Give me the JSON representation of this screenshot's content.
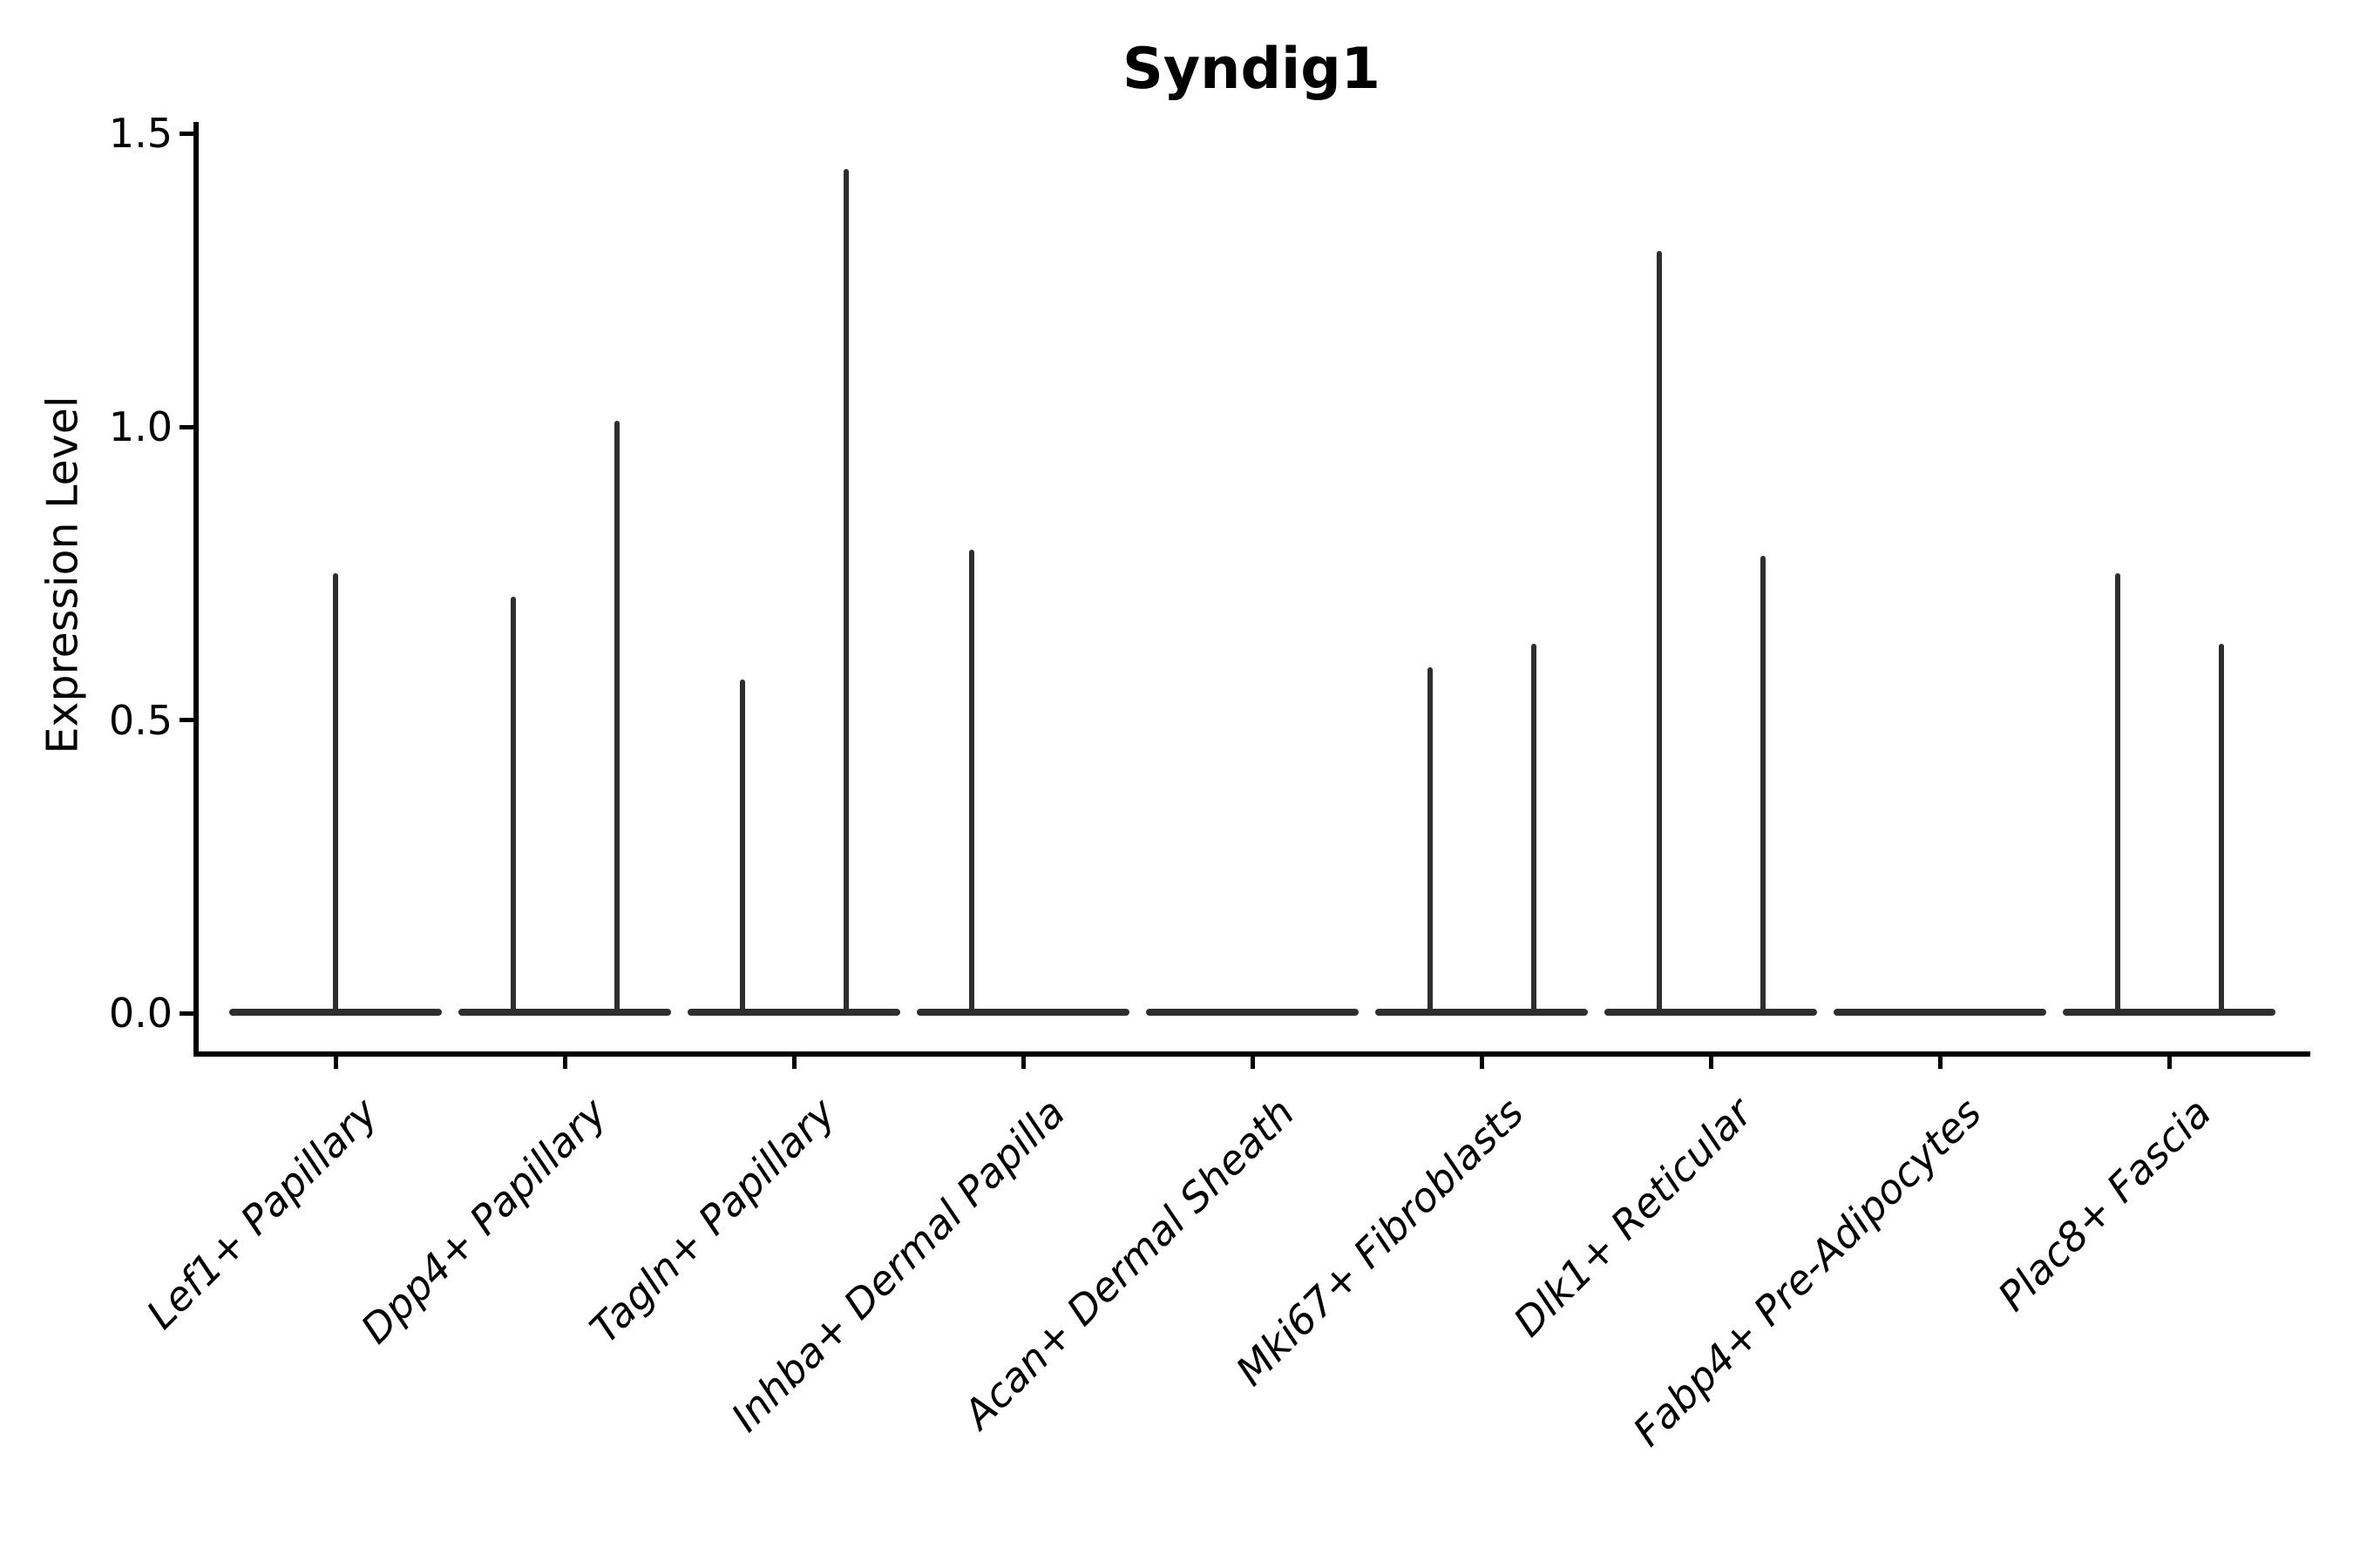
{
  "chart_data": {
    "type": "violin",
    "title": "Syndig1",
    "ylabel": "Expression Level",
    "xlabel": "",
    "ylim": [
      0,
      1.5
    ],
    "ytick_values": [
      0.0,
      0.5,
      1.0,
      1.5
    ],
    "ytick_labels": [
      "0.0",
      "0.5",
      "1.0",
      "1.5"
    ],
    "grid": false,
    "legend": "none",
    "categories": [
      "Lef1+ Papillary",
      "Dpp4+ Papillary",
      "Tagln+ Papillary",
      "Inhba+ Dermal Papilla",
      "Acan+ Dermal Sheath",
      "Mki67+ Fibroblasts",
      "Dlk1+ Reticular",
      "Fabp4+ Pre-Adipocytes",
      "Plac8+ Fascia"
    ],
    "violins": [
      {
        "category": "Lef1+ Papillary",
        "body": "flat-at-zero",
        "spikes": [
          {
            "position": "center",
            "value": 0.75
          }
        ]
      },
      {
        "category": "Dpp4+ Papillary",
        "body": "flat-at-zero",
        "spikes": [
          {
            "position": "left",
            "value": 0.71
          },
          {
            "position": "right",
            "value": 1.01
          }
        ]
      },
      {
        "category": "Tagln+ Papillary",
        "body": "flat-at-zero",
        "spikes": [
          {
            "position": "left",
            "value": 0.57
          },
          {
            "position": "right",
            "value": 1.44
          }
        ]
      },
      {
        "category": "Inhba+ Dermal Papilla",
        "body": "flat-at-zero",
        "spikes": [
          {
            "position": "left",
            "value": 0.79
          }
        ]
      },
      {
        "category": "Acan+ Dermal Sheath",
        "body": "flat-at-zero",
        "spikes": []
      },
      {
        "category": "Mki67+ Fibroblasts",
        "body": "flat-at-zero",
        "spikes": [
          {
            "position": "left",
            "value": 0.59
          },
          {
            "position": "right",
            "value": 0.63
          }
        ]
      },
      {
        "category": "Dlk1+ Reticular",
        "body": "flat-at-zero",
        "spikes": [
          {
            "position": "left",
            "value": 1.3
          },
          {
            "position": "right",
            "value": 0.78
          }
        ]
      },
      {
        "category": "Fabp4+ Pre-Adipocytes",
        "body": "flat-at-zero",
        "spikes": []
      },
      {
        "category": "Plac8+ Fascia",
        "body": "flat-at-zero",
        "spikes": [
          {
            "position": "left",
            "value": 0.75
          },
          {
            "position": "right",
            "value": 0.63
          }
        ]
      }
    ],
    "colors": {
      "violin": "#2e2e2e",
      "axis": "#000000",
      "background": "#ffffff"
    }
  }
}
